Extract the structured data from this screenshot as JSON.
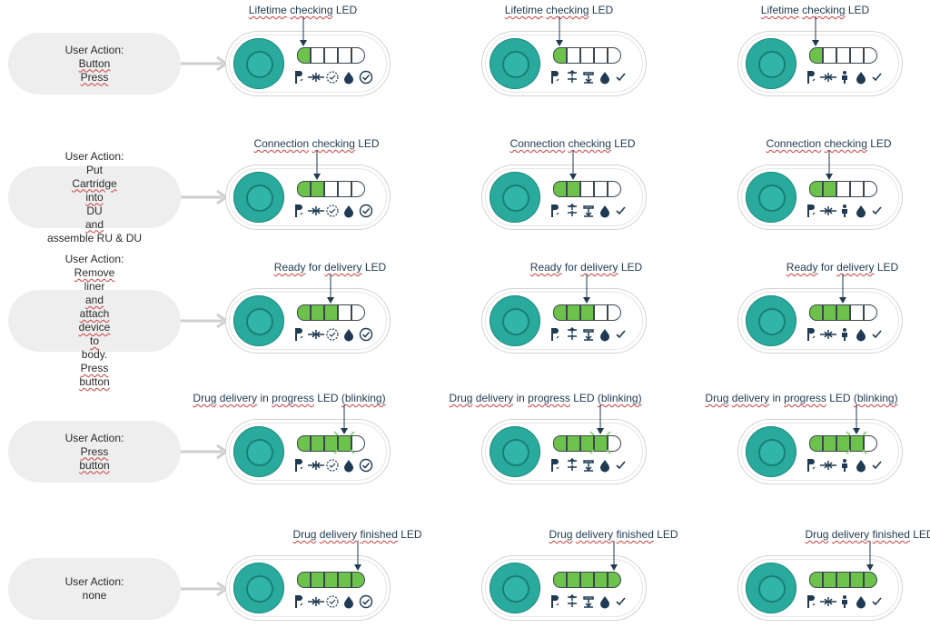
{
  "rows": [
    {
      "action": [
        "User Action:",
        "Button Press"
      ],
      "label": "Lifetime checking LED",
      "lit": 1,
      "blink": false
    },
    {
      "action": [
        "User Action:",
        "Put Cartridge into DU and",
        "assemble RU & DU"
      ],
      "label": "Connection checking LED",
      "lit": 2,
      "blink": false
    },
    {
      "action": [
        "User Action:",
        "Remove liner and attach device",
        "to body. Press button"
      ],
      "label": "Ready for delivery LED",
      "lit": 3,
      "blink": false
    },
    {
      "action": [
        "User Action:",
        "Press button"
      ],
      "label": "Drug delivery in progress LED (blinking)",
      "lit": 4,
      "blink": true
    },
    {
      "action": [
        "User Action:",
        "none"
      ],
      "label": "Drug delivery finished LED",
      "lit": 5,
      "blink": false
    }
  ],
  "variants": [
    "variant-1",
    "variant-2",
    "variant-3"
  ],
  "colors": {
    "button": "#2aa99d",
    "led_on": "#6cc24a",
    "icon": "#1f3a52",
    "blink": "#7fd36a"
  }
}
